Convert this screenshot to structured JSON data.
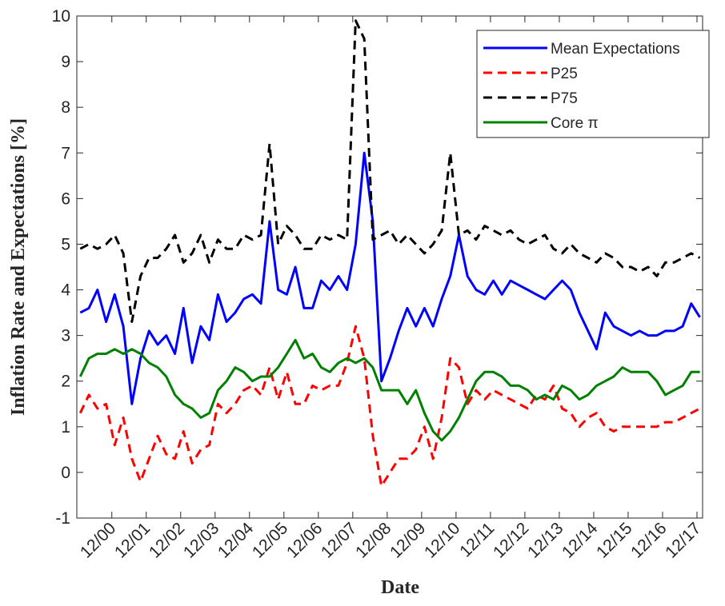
{
  "chart_data": {
    "type": "line",
    "xlabel": "Date",
    "ylabel": "Inflation Rate and Expectations [%]",
    "x": [
      2000.0,
      2000.25,
      2000.5,
      2000.75,
      2001.0,
      2001.25,
      2001.5,
      2001.75,
      2002.0,
      2002.25,
      2002.5,
      2002.75,
      2003.0,
      2003.25,
      2003.5,
      2003.75,
      2004.0,
      2004.25,
      2004.5,
      2004.75,
      2005.0,
      2005.25,
      2005.5,
      2005.75,
      2006.0,
      2006.25,
      2006.5,
      2006.75,
      2007.0,
      2007.25,
      2007.5,
      2007.75,
      2008.0,
      2008.25,
      2008.5,
      2008.75,
      2009.0,
      2009.25,
      2009.5,
      2009.75,
      2010.0,
      2010.25,
      2010.5,
      2010.75,
      2011.0,
      2011.25,
      2011.5,
      2011.75,
      2012.0,
      2012.25,
      2012.5,
      2012.75,
      2013.0,
      2013.25,
      2013.5,
      2013.75,
      2014.0,
      2014.25,
      2014.5,
      2014.75,
      2015.0,
      2015.25,
      2015.5,
      2015.75,
      2016.0,
      2016.25,
      2016.5,
      2016.75,
      2017.0,
      2017.25,
      2017.5,
      2017.75,
      2018.0
    ],
    "series": [
      {
        "name": "Mean Expectations",
        "color": "#0000ff",
        "dash": "solid",
        "values": [
          3.5,
          3.6,
          4.0,
          3.3,
          3.9,
          3.2,
          1.5,
          2.5,
          3.1,
          2.8,
          3.0,
          2.6,
          3.6,
          2.4,
          3.2,
          2.9,
          3.9,
          3.3,
          3.5,
          3.8,
          3.9,
          3.7,
          5.5,
          4.0,
          3.9,
          4.5,
          3.6,
          3.6,
          4.2,
          4.0,
          4.3,
          4.0,
          5.0,
          7.0,
          5.5,
          2.0,
          2.5,
          3.1,
          3.6,
          3.2,
          3.6,
          3.2,
          3.8,
          4.3,
          5.2,
          4.3,
          4.0,
          3.9,
          4.2,
          3.9,
          4.2,
          4.1,
          4.0,
          3.9,
          3.8,
          4.0,
          4.2,
          4.0,
          3.5,
          3.1,
          2.7,
          3.5,
          3.2,
          3.1,
          3.0,
          3.1,
          3.0,
          3.0,
          3.1,
          3.1,
          3.2,
          3.7,
          3.4
        ]
      },
      {
        "name": "P25",
        "color": "#ff0000",
        "dash": "dashed",
        "values": [
          1.3,
          1.7,
          1.4,
          1.5,
          0.6,
          1.2,
          0.3,
          -0.2,
          0.3,
          0.8,
          0.4,
          0.3,
          0.9,
          0.2,
          0.5,
          0.6,
          1.5,
          1.3,
          1.5,
          1.8,
          1.9,
          1.7,
          2.3,
          1.6,
          2.2,
          1.5,
          1.5,
          1.9,
          1.8,
          1.9,
          1.9,
          2.4,
          3.2,
          2.5,
          0.8,
          -0.3,
          0.0,
          0.3,
          0.3,
          0.5,
          1.0,
          0.3,
          1.2,
          2.5,
          2.3,
          1.5,
          1.8,
          1.6,
          1.8,
          1.7,
          1.6,
          1.5,
          1.4,
          1.7,
          1.6,
          1.9,
          1.4,
          1.3,
          1.0,
          1.2,
          1.3,
          1.0,
          0.9,
          1.0,
          1.0,
          1.0,
          1.0,
          1.0,
          1.1,
          1.1,
          1.2,
          1.3,
          1.4
        ]
      },
      {
        "name": "P75",
        "color": "#000000",
        "dash": "dashed",
        "values": [
          4.9,
          5.0,
          4.9,
          5.0,
          5.2,
          4.8,
          3.3,
          4.3,
          4.7,
          4.7,
          4.9,
          5.2,
          4.6,
          4.8,
          5.2,
          4.6,
          5.1,
          4.9,
          4.9,
          5.2,
          5.1,
          5.2,
          7.2,
          5.0,
          5.4,
          5.2,
          4.9,
          4.9,
          5.2,
          5.1,
          5.2,
          5.1,
          9.9,
          9.5,
          5.1,
          5.2,
          5.3,
          5.0,
          5.2,
          5.0,
          4.8,
          5.0,
          5.3,
          7.0,
          5.2,
          5.3,
          5.1,
          5.4,
          5.3,
          5.2,
          5.3,
          5.1,
          5.0,
          5.1,
          5.2,
          4.9,
          4.8,
          5.0,
          4.8,
          4.7,
          4.6,
          4.8,
          4.7,
          4.5,
          4.5,
          4.4,
          4.5,
          4.3,
          4.6,
          4.6,
          4.7,
          4.8,
          4.7
        ]
      },
      {
        "name": "Core π",
        "color": "#008000",
        "dash": "solid",
        "values": [
          2.1,
          2.5,
          2.6,
          2.6,
          2.7,
          2.6,
          2.7,
          2.6,
          2.4,
          2.3,
          2.1,
          1.7,
          1.5,
          1.4,
          1.2,
          1.3,
          1.8,
          2.0,
          2.3,
          2.2,
          2.0,
          2.1,
          2.1,
          2.3,
          2.6,
          2.9,
          2.5,
          2.6,
          2.3,
          2.2,
          2.4,
          2.5,
          2.4,
          2.5,
          2.3,
          1.8,
          1.8,
          1.8,
          1.5,
          1.8,
          1.3,
          0.9,
          0.7,
          0.9,
          1.2,
          1.6,
          2.0,
          2.2,
          2.2,
          2.1,
          1.9,
          1.9,
          1.8,
          1.6,
          1.7,
          1.6,
          1.9,
          1.8,
          1.6,
          1.7,
          1.9,
          2.0,
          2.1,
          2.3,
          2.2,
          2.2,
          2.2,
          2.0,
          1.7,
          1.8,
          1.9,
          2.2,
          2.2
        ]
      }
    ],
    "xlim": [
      1999.9,
      2018.08
    ],
    "xticks": [
      {
        "value": 2000.917,
        "label": "12/00"
      },
      {
        "value": 2001.917,
        "label": "12/01"
      },
      {
        "value": 2002.917,
        "label": "12/02"
      },
      {
        "value": 2003.917,
        "label": "12/03"
      },
      {
        "value": 2004.917,
        "label": "12/04"
      },
      {
        "value": 2005.917,
        "label": "12/05"
      },
      {
        "value": 2006.917,
        "label": "12/06"
      },
      {
        "value": 2007.917,
        "label": "12/07"
      },
      {
        "value": 2008.917,
        "label": "12/08"
      },
      {
        "value": 2009.917,
        "label": "12/09"
      },
      {
        "value": 2010.917,
        "label": "12/10"
      },
      {
        "value": 2011.917,
        "label": "12/11"
      },
      {
        "value": 2012.917,
        "label": "12/12"
      },
      {
        "value": 2013.917,
        "label": "12/13"
      },
      {
        "value": 2014.917,
        "label": "12/14"
      },
      {
        "value": 2015.917,
        "label": "12/15"
      },
      {
        "value": 2016.917,
        "label": "12/16"
      },
      {
        "value": 2017.917,
        "label": "12/17"
      }
    ],
    "ylim": [
      -1,
      10
    ],
    "yticks": [
      -1,
      0,
      1,
      2,
      3,
      4,
      5,
      6,
      7,
      8,
      9,
      10
    ],
    "grid": false,
    "legend": "top-right"
  }
}
